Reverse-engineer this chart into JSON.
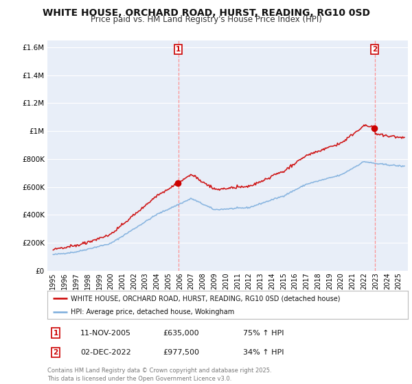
{
  "title": "WHITE HOUSE, ORCHARD ROAD, HURST, READING, RG10 0SD",
  "subtitle": "Price paid vs. HM Land Registry's House Price Index (HPI)",
  "title_fontsize": 10,
  "subtitle_fontsize": 8.5,
  "ylim": [
    0,
    1650000
  ],
  "yticks": [
    0,
    200000,
    400000,
    600000,
    800000,
    1000000,
    1200000,
    1400000,
    1600000
  ],
  "ytick_labels": [
    "£0",
    "£200K",
    "£400K",
    "£600K",
    "£800K",
    "£1M",
    "£1.2M",
    "£1.4M",
    "£1.6M"
  ],
  "background_color": "#ffffff",
  "plot_bg_color": "#e8eef8",
  "grid_color": "#ffffff",
  "red_line_color": "#cc0000",
  "blue_line_color": "#7aacdc",
  "marker1_date": 2005.87,
  "marker1_value": 635000,
  "marker2_date": 2022.92,
  "marker2_value": 977500,
  "vline_color": "#ff8888",
  "annotation1": [
    "1",
    "11-NOV-2005",
    "£635,000",
    "75% ↑ HPI"
  ],
  "annotation2": [
    "2",
    "02-DEC-2022",
    "£977,500",
    "34% ↑ HPI"
  ],
  "legend_line1": "WHITE HOUSE, ORCHARD ROAD, HURST, READING, RG10 0SD (detached house)",
  "legend_line2": "HPI: Average price, detached house, Wokingham",
  "footer": "Contains HM Land Registry data © Crown copyright and database right 2025.\nThis data is licensed under the Open Government Licence v3.0.",
  "xtick_years": [
    1995,
    1996,
    1997,
    1998,
    1999,
    2000,
    2001,
    2002,
    2003,
    2004,
    2005,
    2006,
    2007,
    2008,
    2009,
    2010,
    2011,
    2012,
    2013,
    2014,
    2015,
    2016,
    2017,
    2018,
    2019,
    2020,
    2021,
    2022,
    2023,
    2024,
    2025
  ],
  "xlim": [
    1994.5,
    2025.8
  ]
}
